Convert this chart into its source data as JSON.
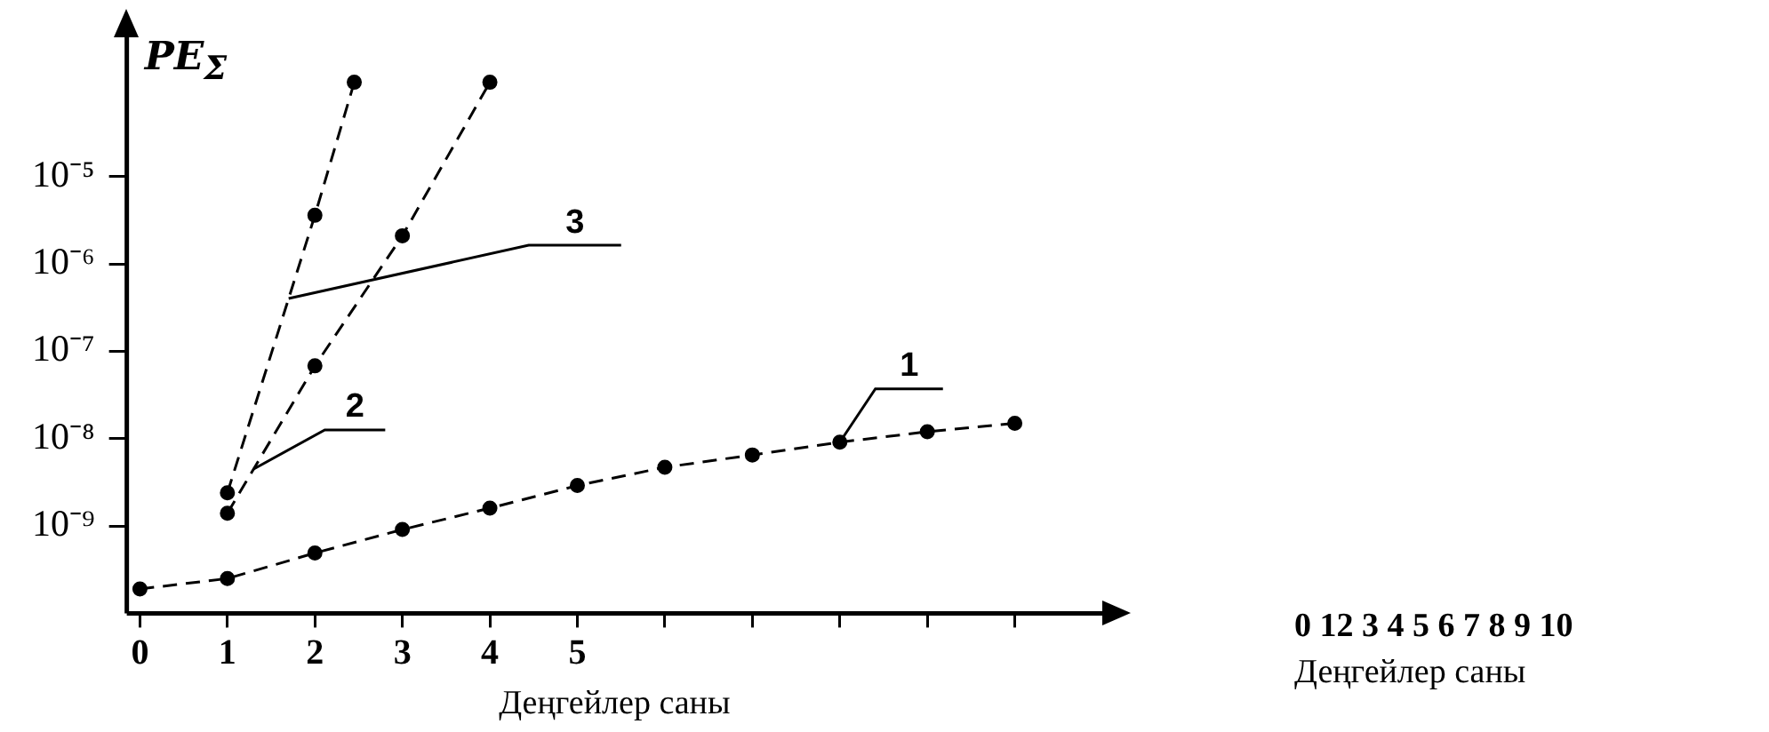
{
  "chart_data": {
    "type": "line",
    "xlabel": "Деңгейлер саны",
    "ylabel": "PE$_{Σ}$",
    "log": "y",
    "grid": false,
    "legend": false,
    "marker": "circle",
    "line_style": "dashed",
    "xlim": [
      -0.15,
      11
    ],
    "xticks": [
      0,
      1,
      2,
      3,
      4,
      5,
      {
        "value": 6,
        "label": null
      },
      {
        "value": 7,
        "label": null
      },
      {
        "value": 8,
        "label": null
      },
      {
        "value": 9,
        "label": null
      },
      {
        "value": 10,
        "label": null
      }
    ],
    "ylim": [
      1e-10,
      0.0004
    ],
    "yticks": [
      {
        "value": 1e-09,
        "label": "10⁻⁹"
      },
      {
        "value": 1e-08,
        "label": "10⁻⁸"
      },
      {
        "value": 1e-07,
        "label": "10⁻⁷"
      },
      {
        "value": 1e-06,
        "label": "10⁻⁶"
      },
      {
        "value": 1e-05,
        "label": "10⁻⁵"
      }
    ],
    "series": [
      {
        "name": "1",
        "color": "#000000",
        "x": [
          0,
          1,
          2,
          3,
          4,
          5,
          6,
          7,
          8,
          9,
          10
        ],
        "values": [
          1.9e-10,
          2.5e-10,
          4.9e-10,
          9.1e-10,
          1.6e-09,
          2.9e-09,
          4.7e-09,
          6.5e-09,
          9.1e-09,
          1.2e-08,
          1.5e-08
        ]
      },
      {
        "name": "2",
        "color": "#000000",
        "x": [
          1,
          2,
          3,
          4
        ],
        "values": [
          1.4e-09,
          6.8e-08,
          2.1e-06,
          0.00012
        ]
      },
      {
        "name": "3",
        "color": "#000000",
        "x": [
          1,
          2,
          2.45
        ],
        "values": [
          2.4e-09,
          3.6e-06,
          0.00012
        ]
      }
    ],
    "annotations": [
      "0 12 3 4 5 6 7 8 9 10",
      "Деңгейлер саны"
    ]
  }
}
